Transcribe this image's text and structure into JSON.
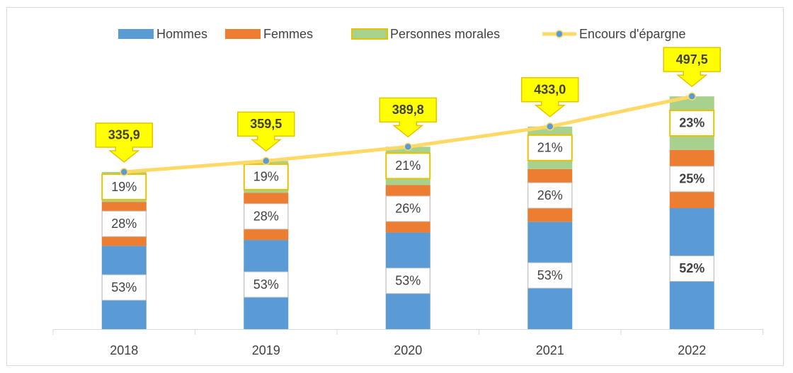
{
  "chart_data": {
    "type": "stacked-bar-line",
    "categories": [
      "2018",
      "2019",
      "2020",
      "2021",
      "2022"
    ],
    "series": [
      {
        "name": "Hommes",
        "color": "#5b9bd5",
        "values": [
          53,
          53,
          53,
          53,
          52
        ],
        "value_labels": [
          "53%",
          "53%",
          "53%",
          "53%",
          "52%"
        ]
      },
      {
        "name": "Femmes",
        "color": "#ed7d31",
        "values": [
          28,
          28,
          26,
          26,
          25
        ],
        "value_labels": [
          "28%",
          "28%",
          "26%",
          "26%",
          "25%"
        ]
      },
      {
        "name": "Personnes morales",
        "color": "#a9d18e",
        "values": [
          19,
          19,
          21,
          21,
          23
        ],
        "value_labels": [
          "19%",
          "19%",
          "21%",
          "21%",
          "23%"
        ]
      }
    ],
    "line": {
      "name": "Encours d'épargne",
      "color": "#ffd966",
      "marker_color": "#5b9bd5",
      "values": [
        335.9,
        359.5,
        389.8,
        433.0,
        497.5
      ],
      "value_labels": [
        "335,9",
        "359,5",
        "389,8",
        "433,0",
        "497,5"
      ]
    },
    "legend": "top"
  }
}
